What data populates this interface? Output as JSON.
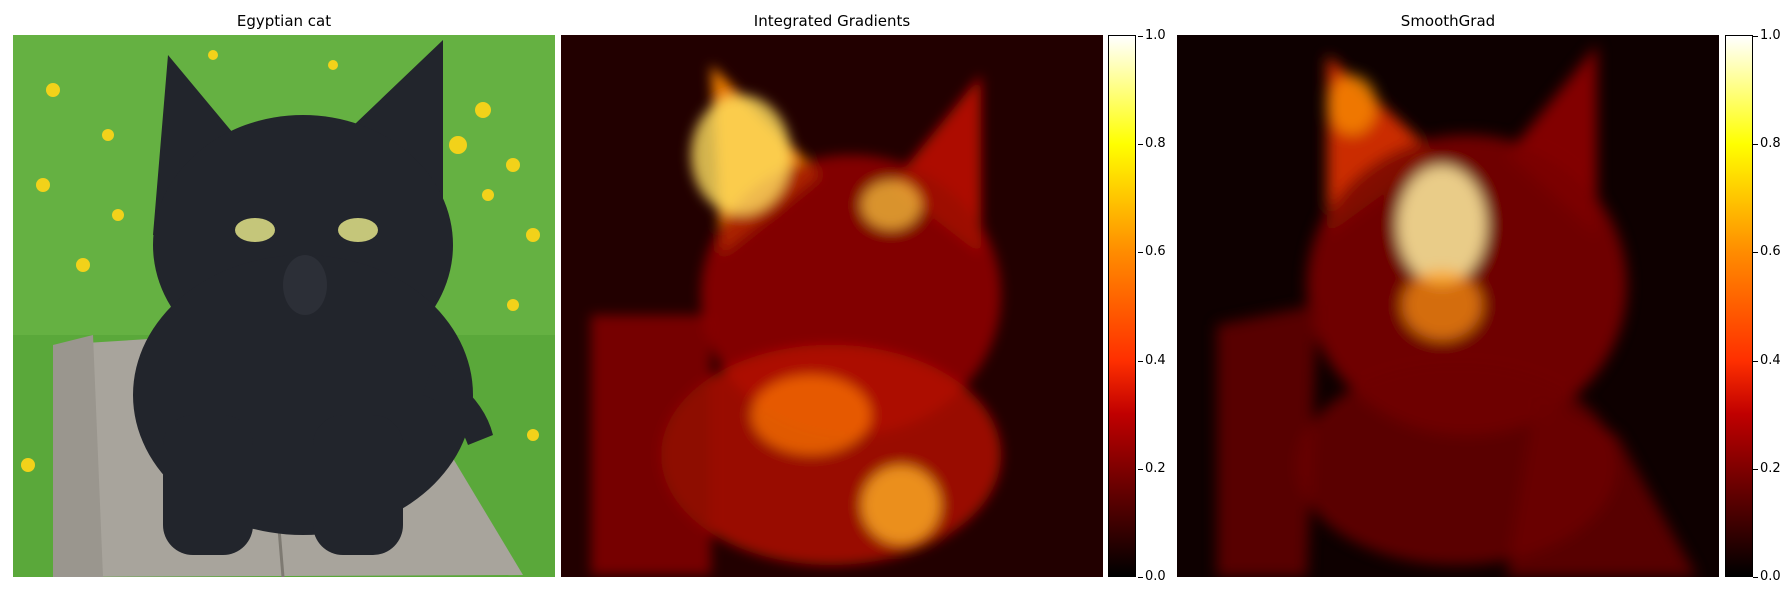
{
  "panels": [
    {
      "title": "Egyptian cat"
    },
    {
      "title": "Integrated Gradients"
    },
    {
      "title": "SmoothGrad"
    }
  ],
  "colorbar": {
    "ticks": [
      "1.0",
      "0.8",
      "0.6",
      "0.4",
      "0.2",
      "0.0"
    ],
    "colormap": [
      "#000000",
      "#c00000",
      "#ff3000",
      "#ff8c00",
      "#ffff00",
      "#ffffff"
    ]
  }
}
